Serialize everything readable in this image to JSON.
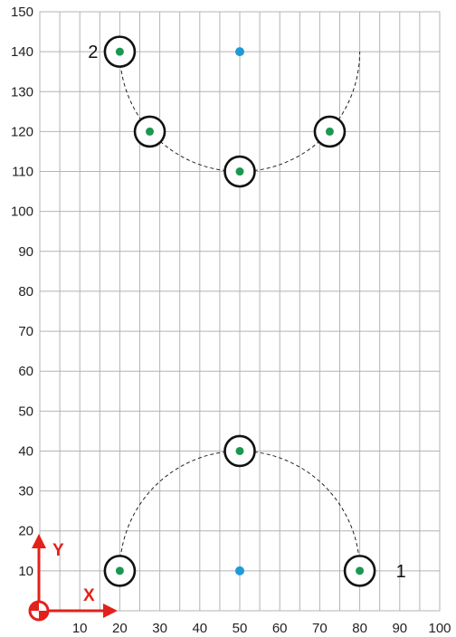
{
  "chart_data": {
    "type": "scatter",
    "xlim": [
      0,
      100
    ],
    "ylim": [
      0,
      150
    ],
    "x_ticks": [
      10,
      20,
      30,
      40,
      50,
      60,
      70,
      80,
      90,
      100
    ],
    "y_ticks": [
      10,
      20,
      30,
      40,
      50,
      60,
      70,
      80,
      90,
      100,
      110,
      120,
      130,
      140,
      150
    ],
    "grid": true,
    "axis_labels": {
      "x": "X",
      "y": "Y"
    },
    "holes": [
      {
        "x": 20,
        "y": 10
      },
      {
        "x": 50,
        "y": 40
      },
      {
        "x": 80,
        "y": 10
      },
      {
        "x": 20,
        "y": 140
      },
      {
        "x": 27.5,
        "y": 120
      },
      {
        "x": 50,
        "y": 110
      },
      {
        "x": 72.5,
        "y": 120
      }
    ],
    "arc_centers": [
      {
        "x": 50,
        "y": 10
      },
      {
        "x": 50,
        "y": 140
      }
    ],
    "arcs": [
      {
        "center": [
          50,
          10
        ],
        "radius": 30,
        "from_deg": 0,
        "to_deg": 180,
        "side": "upper"
      },
      {
        "center": [
          50,
          140
        ],
        "radius": 30,
        "from_deg": 180,
        "to_deg": 360,
        "side": "lower"
      }
    ],
    "point_labels": [
      {
        "text": "1",
        "x": 80,
        "y": 10,
        "side": "right"
      },
      {
        "text": "2",
        "x": 20,
        "y": 140,
        "side": "left"
      }
    ],
    "colors": {
      "grid": "#b4b4b4",
      "hole_ring": "#111111",
      "hole_center": "#1a9850",
      "arc_center": "#1f9ad6",
      "axis_arrow": "#e32119"
    }
  }
}
